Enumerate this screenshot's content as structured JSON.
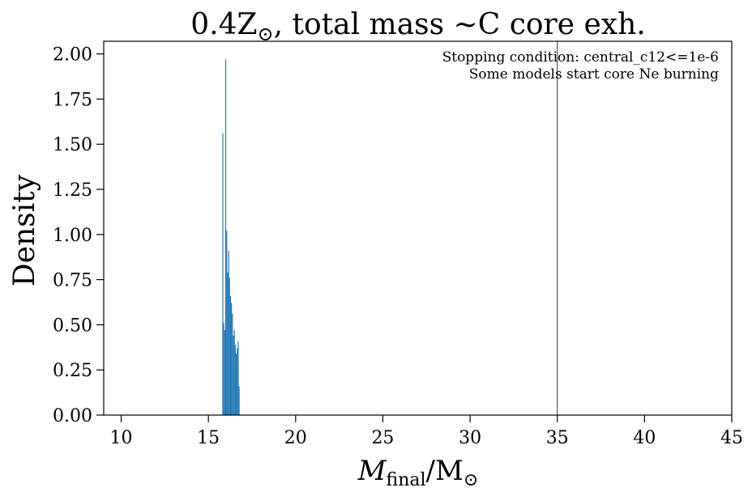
{
  "chart_data": {
    "type": "bar",
    "title_prefix": "0.4Z",
    "title_sub": "⊙",
    "title_suffix": ", total mass ~C core exh.",
    "xlabel_main": "M",
    "xlabel_subscript": "final",
    "xlabel_unit": "/M",
    "xlabel_unit_sub": "⊙",
    "ylabel": "Density",
    "xlim": [
      9,
      45
    ],
    "ylim": [
      0,
      2.07
    ],
    "xticks": [
      "10",
      "15",
      "20",
      "25",
      "30",
      "35",
      "40",
      "45"
    ],
    "yticks": [
      "0.00",
      "0.25",
      "0.50",
      "0.75",
      "1.00",
      "1.25",
      "1.50",
      "1.75",
      "2.00"
    ],
    "annotations": [
      "Stopping condition: central_c12<=1e-6",
      "Some models start core Ne burning"
    ],
    "vline_x": 35,
    "bar_color": "#1f77b4",
    "bin_width": 0.055,
    "bin_start": 15.8,
    "values": [
      1.56,
      0.51,
      0.47,
      1.97,
      1.02,
      0.79,
      0.91,
      0.76,
      0.66,
      0.62,
      0.56,
      0.44,
      0.47,
      0.39,
      0.34,
      0.37,
      0.41,
      0.16
    ]
  }
}
